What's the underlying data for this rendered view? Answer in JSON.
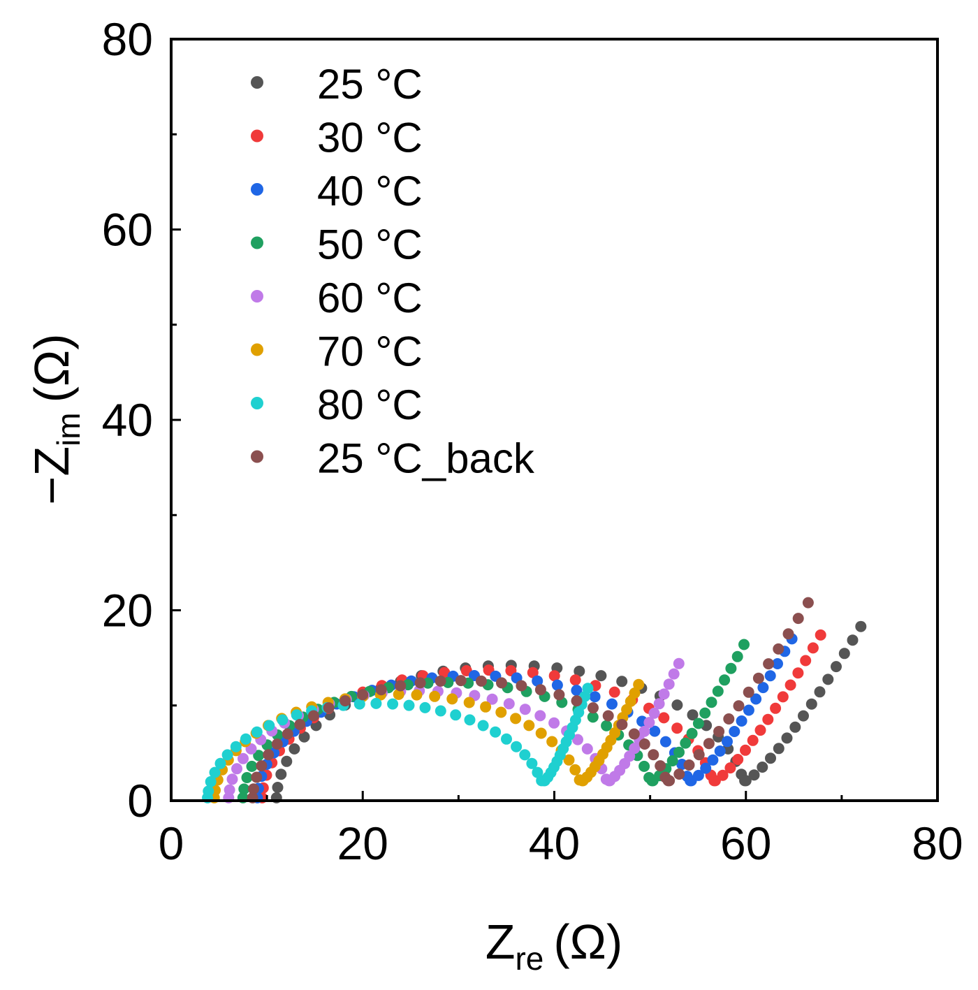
{
  "chart_data": {
    "type": "scatter",
    "xlabel": "Z",
    "xlabel_sub": "re",
    "xlabel_unit": "(Ω)",
    "ylabel_prefix": "−Z",
    "ylabel_sub": "im",
    "ylabel_unit": "(Ω)",
    "xlim": [
      0,
      80
    ],
    "ylim": [
      0,
      80
    ],
    "xticks": [
      "0",
      "20",
      "40",
      "60",
      "80"
    ],
    "yticks": [
      "0",
      "20",
      "40",
      "60",
      "80"
    ],
    "legend_position": "top-left",
    "series": [
      {
        "name": "25 °C",
        "color": "#555555",
        "r0": 11.0,
        "r1": 60.0,
        "tail_end": [
          72.0,
          18.3
        ]
      },
      {
        "name": "30 °C",
        "color": "#f03a3a",
        "r0": 9.5,
        "r1": 56.8,
        "tail_end": [
          67.8,
          17.4
        ]
      },
      {
        "name": "40 °C",
        "color": "#1f66e5",
        "r0": 9.0,
        "r1": 54.3,
        "tail_end": [
          64.8,
          17.0
        ]
      },
      {
        "name": "50 °C",
        "color": "#1fa060",
        "r0": 7.5,
        "r1": 50.3,
        "tail_end": [
          59.8,
          16.4
        ]
      },
      {
        "name": "60 °C",
        "color": "#c07ae8",
        "r0": 6.0,
        "r1": 45.8,
        "tail_end": [
          53.0,
          14.4
        ]
      },
      {
        "name": "70 °C",
        "color": "#e0a000",
        "r0": 4.5,
        "r1": 43.0,
        "tail_end": [
          48.8,
          12.2
        ]
      },
      {
        "name": "80 °C",
        "color": "#1fd0d0",
        "r0": 3.8,
        "r1": 39.0,
        "tail_end": [
          43.5,
          11.8
        ]
      },
      {
        "name": "25 °C_back",
        "color": "#8b4f4f",
        "r0": 8.5,
        "r1": 52.0,
        "tail_end": [
          66.5,
          20.8
        ]
      }
    ]
  }
}
